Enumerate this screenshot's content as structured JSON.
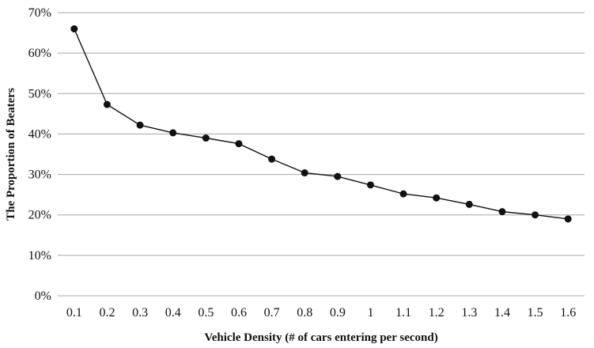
{
  "chart_data": {
    "type": "line",
    "title": "",
    "xlabel": "Vehicle Density (# of cars entering  per second)",
    "ylabel": "The Proportion of Beaters",
    "x_categories": [
      "0.1",
      "0.2",
      "0.3",
      "0.4",
      "0.5",
      "0.6",
      "0.7",
      "0.8",
      "0.9",
      "1",
      "1.1",
      "1.2",
      "1.3",
      "1.4",
      "1.5",
      "1.6"
    ],
    "series": [
      {
        "values": [
          66,
          47.3,
          42.2,
          40.3,
          39.0,
          37.6,
          33.8,
          30.4,
          29.5,
          27.4,
          25.2,
          24.2,
          22.6,
          20.8,
          20.0,
          19.0
        ]
      }
    ],
    "y_unit": "%",
    "ylim": [
      0,
      70
    ],
    "y_ticks": [
      "0%",
      "10%",
      "20%",
      "30%",
      "40%",
      "50%",
      "60%",
      "70%"
    ],
    "grid": "horizontal",
    "legend": "none",
    "colors": {
      "line": "#111111",
      "marker": "#111111",
      "grid": "#a6a6a6"
    }
  }
}
